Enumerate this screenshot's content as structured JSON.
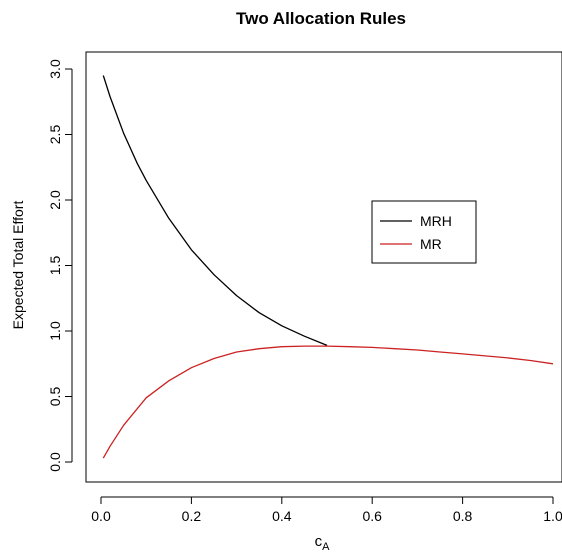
{
  "chart_data": {
    "type": "line",
    "title": "Two Allocation Rules",
    "xlabel_main": "c",
    "xlabel_sub": "A",
    "ylabel": "Expected Total Effort",
    "xlim": [
      0.0,
      1.0
    ],
    "ylim": [
      0.0,
      3.0
    ],
    "x_ticks": [
      "0.0",
      "0.2",
      "0.4",
      "0.6",
      "0.8",
      "1.0"
    ],
    "y_ticks": [
      "0.0",
      "0.5",
      "1.0",
      "1.5",
      "2.0",
      "2.5",
      "3.0"
    ],
    "legend": {
      "placement": "center-right"
    },
    "series": [
      {
        "name": "MRH",
        "color": "#000000",
        "x": [
          0.005,
          0.02,
          0.05,
          0.08,
          0.1,
          0.15,
          0.2,
          0.25,
          0.3,
          0.35,
          0.4,
          0.45,
          0.5
        ],
        "y": [
          2.95,
          2.79,
          2.51,
          2.28,
          2.15,
          1.86,
          1.62,
          1.43,
          1.27,
          1.14,
          1.04,
          0.96,
          0.89
        ]
      },
      {
        "name": "MR",
        "color": "#cc2222",
        "x": [
          0.005,
          0.02,
          0.05,
          0.1,
          0.15,
          0.2,
          0.25,
          0.3,
          0.35,
          0.4,
          0.45,
          0.5,
          0.55,
          0.6,
          0.65,
          0.7,
          0.75,
          0.8,
          0.85,
          0.9,
          0.95,
          1.0
        ],
        "y": [
          0.03,
          0.12,
          0.28,
          0.49,
          0.62,
          0.72,
          0.79,
          0.84,
          0.865,
          0.88,
          0.885,
          0.885,
          0.88,
          0.875,
          0.865,
          0.855,
          0.84,
          0.825,
          0.81,
          0.795,
          0.775,
          0.75
        ]
      }
    ]
  }
}
